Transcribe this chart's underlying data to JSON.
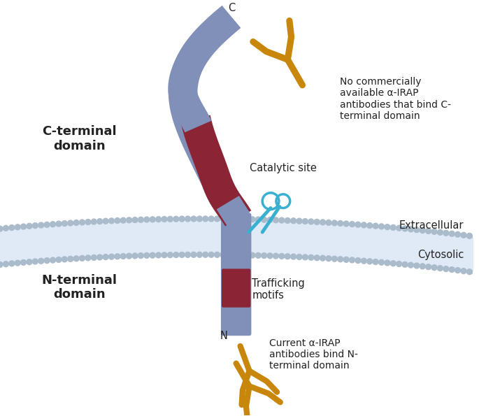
{
  "bg_color": "#ffffff",
  "protein_blue": "#8090b8",
  "catalytic_red": "#8b2535",
  "membrane_dot_color": "#aabbcc",
  "membrane_bg": "#dce8f5",
  "antibody_color": "#c8860a",
  "scissors_color": "#3ab0d0",
  "text_color": "#222222",
  "label_c_terminal": "C-terminal\ndomain",
  "label_n_terminal": "N-terminal\ndomain",
  "label_catalytic": "Catalytic site",
  "label_trafficking": "Trafficking\nmotifs",
  "label_extracellular": "Extracellular",
  "label_cytosolic": "Cytosolic",
  "label_no_antibody": "No commercially\navailable α-IRAP\nantibodies that bind C-\nterminal domain",
  "label_current_antibody": "Current α-IRAP\nantibodies bind N-\nterminal domain",
  "label_C": "C",
  "label_N": "N",
  "figw": 6.85,
  "figh": 5.95,
  "dpi": 100
}
